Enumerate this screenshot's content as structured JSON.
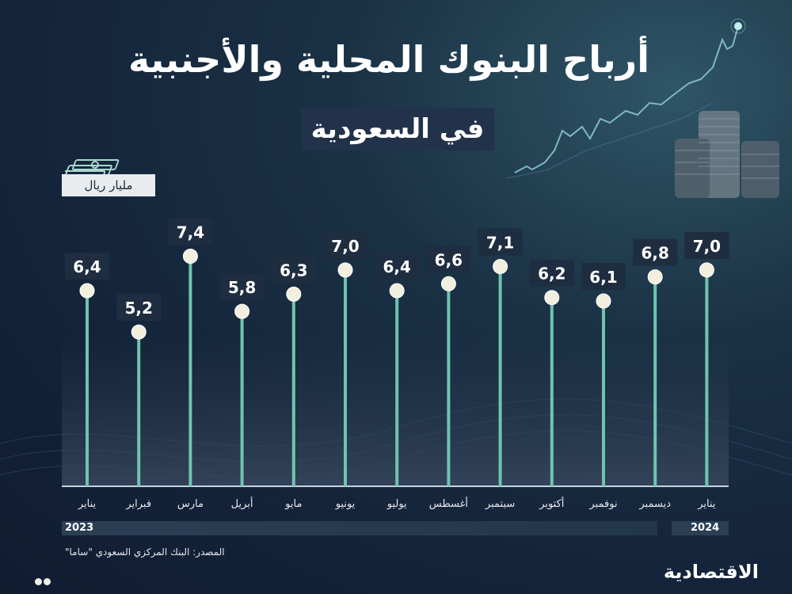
{
  "header": {
    "title": "أرباح البنوك المحلية والأجنبية",
    "subtitle": "في السعودية",
    "unit": "مليار ريال"
  },
  "icons": {
    "unit_icon": "money-stack-icon",
    "decoration": "stock-chart-coins-icon"
  },
  "colors": {
    "background": "#14233a",
    "stem": "#6fc4b0",
    "dot": "#f2efdf",
    "label_box": "#1f2d40"
  },
  "chart_data": {
    "type": "lollipop",
    "categories": [
      "يناير",
      "فبراير",
      "مارس",
      "أبريل",
      "مايو",
      "يونيو",
      "يوليو",
      "أغسطس",
      "سبتمبر",
      "أكتوبر",
      "نوفمبر",
      "ديسمبر",
      "يناير"
    ],
    "values": [
      6.4,
      5.2,
      7.4,
      5.8,
      6.3,
      7.0,
      6.4,
      6.6,
      7.1,
      6.2,
      6.1,
      6.8,
      7.0
    ],
    "value_labels": [
      "6,4",
      "5,2",
      "7,4",
      "5,8",
      "6,3",
      "7,0",
      "6,4",
      "6,6",
      "7,1",
      "6,2",
      "6,1",
      "6,8",
      "7,0"
    ],
    "years": [
      "2023",
      "2024"
    ],
    "grid": false
  },
  "footer": {
    "source": "المصدر: البنك المركزي السعودي \"ساما\"",
    "brand": "الاقتصادية"
  }
}
